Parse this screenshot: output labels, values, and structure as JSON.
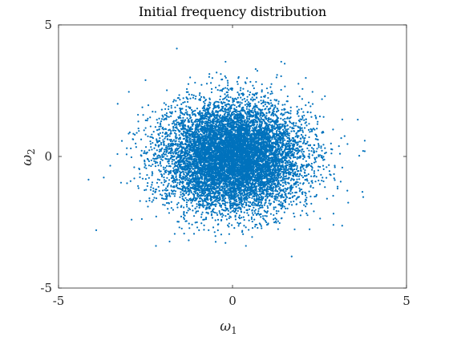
{
  "chart_data": {
    "type": "scatter",
    "title": "Initial frequency distribution",
    "xlabel": {
      "symbol": "ω",
      "sub": "1"
    },
    "ylabel": {
      "symbol": "ω",
      "sub": "2"
    },
    "xlim": [
      -5,
      5
    ],
    "ylim": [
      -5,
      5
    ],
    "xticks": [
      -5,
      0,
      5
    ],
    "yticks": [
      -5,
      0,
      5
    ],
    "grid": false,
    "box": true,
    "marker_color": "#0072BD",
    "distribution": {
      "kind": "bivariate-normal",
      "mean": [
        0,
        0
      ],
      "std": [
        1,
        1
      ],
      "approx_point_count": 10000
    },
    "outlier_points": [
      {
        "x": -1.6,
        "y": 4.1
      },
      {
        "x": -3.7,
        "y": -0.8
      },
      {
        "x": 3.6,
        "y": 1.4
      },
      {
        "x": 3.8,
        "y": 0.6
      },
      {
        "x": 3.8,
        "y": 0.2
      },
      {
        "x": 1.7,
        "y": -3.8
      },
      {
        "x": -2.2,
        "y": -3.4
      },
      {
        "x": -3.3,
        "y": 2.0
      },
      {
        "x": -2.5,
        "y": 2.9
      },
      {
        "x": 1.4,
        "y": 3.6
      },
      {
        "x": -0.2,
        "y": 3.6
      },
      {
        "x": 2.9,
        "y": -2.6
      },
      {
        "x": 3.3,
        "y": -1.3
      },
      {
        "x": -2.9,
        "y": -2.4
      }
    ]
  }
}
